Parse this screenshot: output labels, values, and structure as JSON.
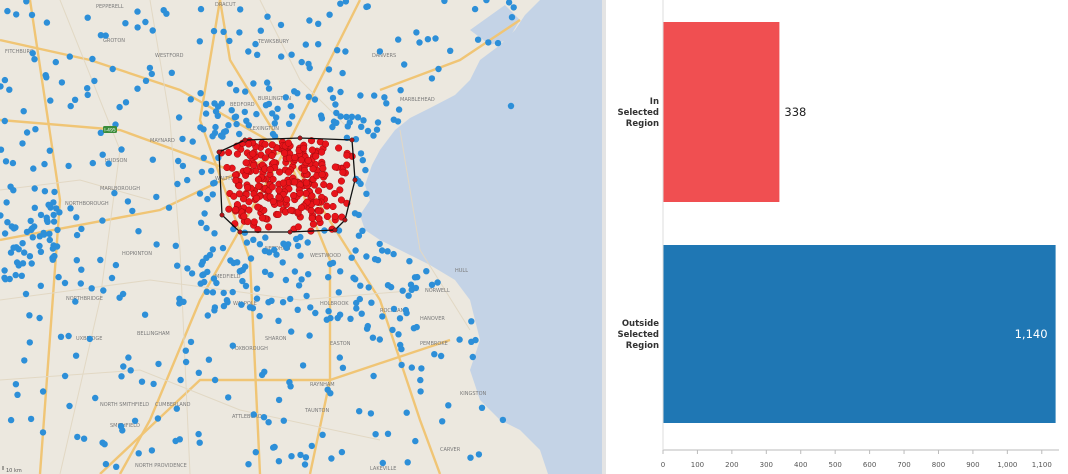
{
  "map": {
    "colors": {
      "land": "#ece8df",
      "water": "#c4d3e6",
      "major_road": "#f0c575",
      "minor_road": "#ffffff",
      "outside_dot": "#2d8fd8",
      "inside_dot": "#e8141a",
      "selection_outline": "#111111"
    },
    "towns": [
      {
        "name": "PEPPERELL"
      },
      {
        "name": "DRACUT"
      },
      {
        "name": "GROTON"
      },
      {
        "name": "TEWKSBURY"
      },
      {
        "name": "WESTFORD"
      },
      {
        "name": "DANVERS"
      },
      {
        "name": "FITCHBURG"
      },
      {
        "name": "BEDFORD"
      },
      {
        "name": "BURLINGTON"
      },
      {
        "name": "MARBLEHEAD"
      },
      {
        "name": "MAYNARD"
      },
      {
        "name": "LEXINGTON"
      },
      {
        "name": "HUDSON"
      },
      {
        "name": "MARLBOROUGH"
      },
      {
        "name": "WALTHAM"
      },
      {
        "name": "NORTHBOROUGH"
      },
      {
        "name": "HOPKINTON"
      },
      {
        "name": "NEEDHAM"
      },
      {
        "name": "WESTWOOD"
      },
      {
        "name": "MEDFIELD"
      },
      {
        "name": "NORTHBRIDGE"
      },
      {
        "name": "WALPOLE"
      },
      {
        "name": "SHARON"
      },
      {
        "name": "HOLBROOK"
      },
      {
        "name": "ROCKLAND"
      },
      {
        "name": "NORWELL"
      },
      {
        "name": "HANOVER"
      },
      {
        "name": "HULL"
      },
      {
        "name": "BELLINGHAM"
      },
      {
        "name": "UXBRIDGE"
      },
      {
        "name": "FOXBOROUGH"
      },
      {
        "name": "PEMBROKE"
      },
      {
        "name": "NORTH SMITHFIELD"
      },
      {
        "name": "CUMBERLAND"
      },
      {
        "name": "SMITHFIELD"
      },
      {
        "name": "ATTLEBORO"
      },
      {
        "name": "TAUNTON"
      },
      {
        "name": "RAYNHAM"
      },
      {
        "name": "CARVER"
      },
      {
        "name": "NORTH PROVIDENCE"
      },
      {
        "name": "LAKEVILLE"
      },
      {
        "name": "EASTON"
      },
      {
        "name": "KINGSTON"
      }
    ],
    "shield_label": "I-495",
    "scale_label": "10 km"
  },
  "chart_data": {
    "type": "bar",
    "orientation": "horizontal",
    "categories": [
      "In\nSelected\nRegion",
      "Outside\nSelected\nRegion"
    ],
    "values": [
      338,
      1140
    ],
    "value_labels": [
      "338",
      "1,140"
    ],
    "colors": [
      "#f04f51",
      "#1f77b4"
    ],
    "title": "",
    "xlabel": "",
    "ylabel": "",
    "xlim": [
      0,
      1150
    ],
    "xticks": [
      0,
      100,
      200,
      300,
      400,
      500,
      600,
      700,
      800,
      900,
      1000,
      1100
    ],
    "xtick_labels": [
      "0",
      "100",
      "200",
      "300",
      "400",
      "500",
      "600",
      "700",
      "800",
      "900",
      "1,000",
      "1,100"
    ],
    "grid": false
  }
}
